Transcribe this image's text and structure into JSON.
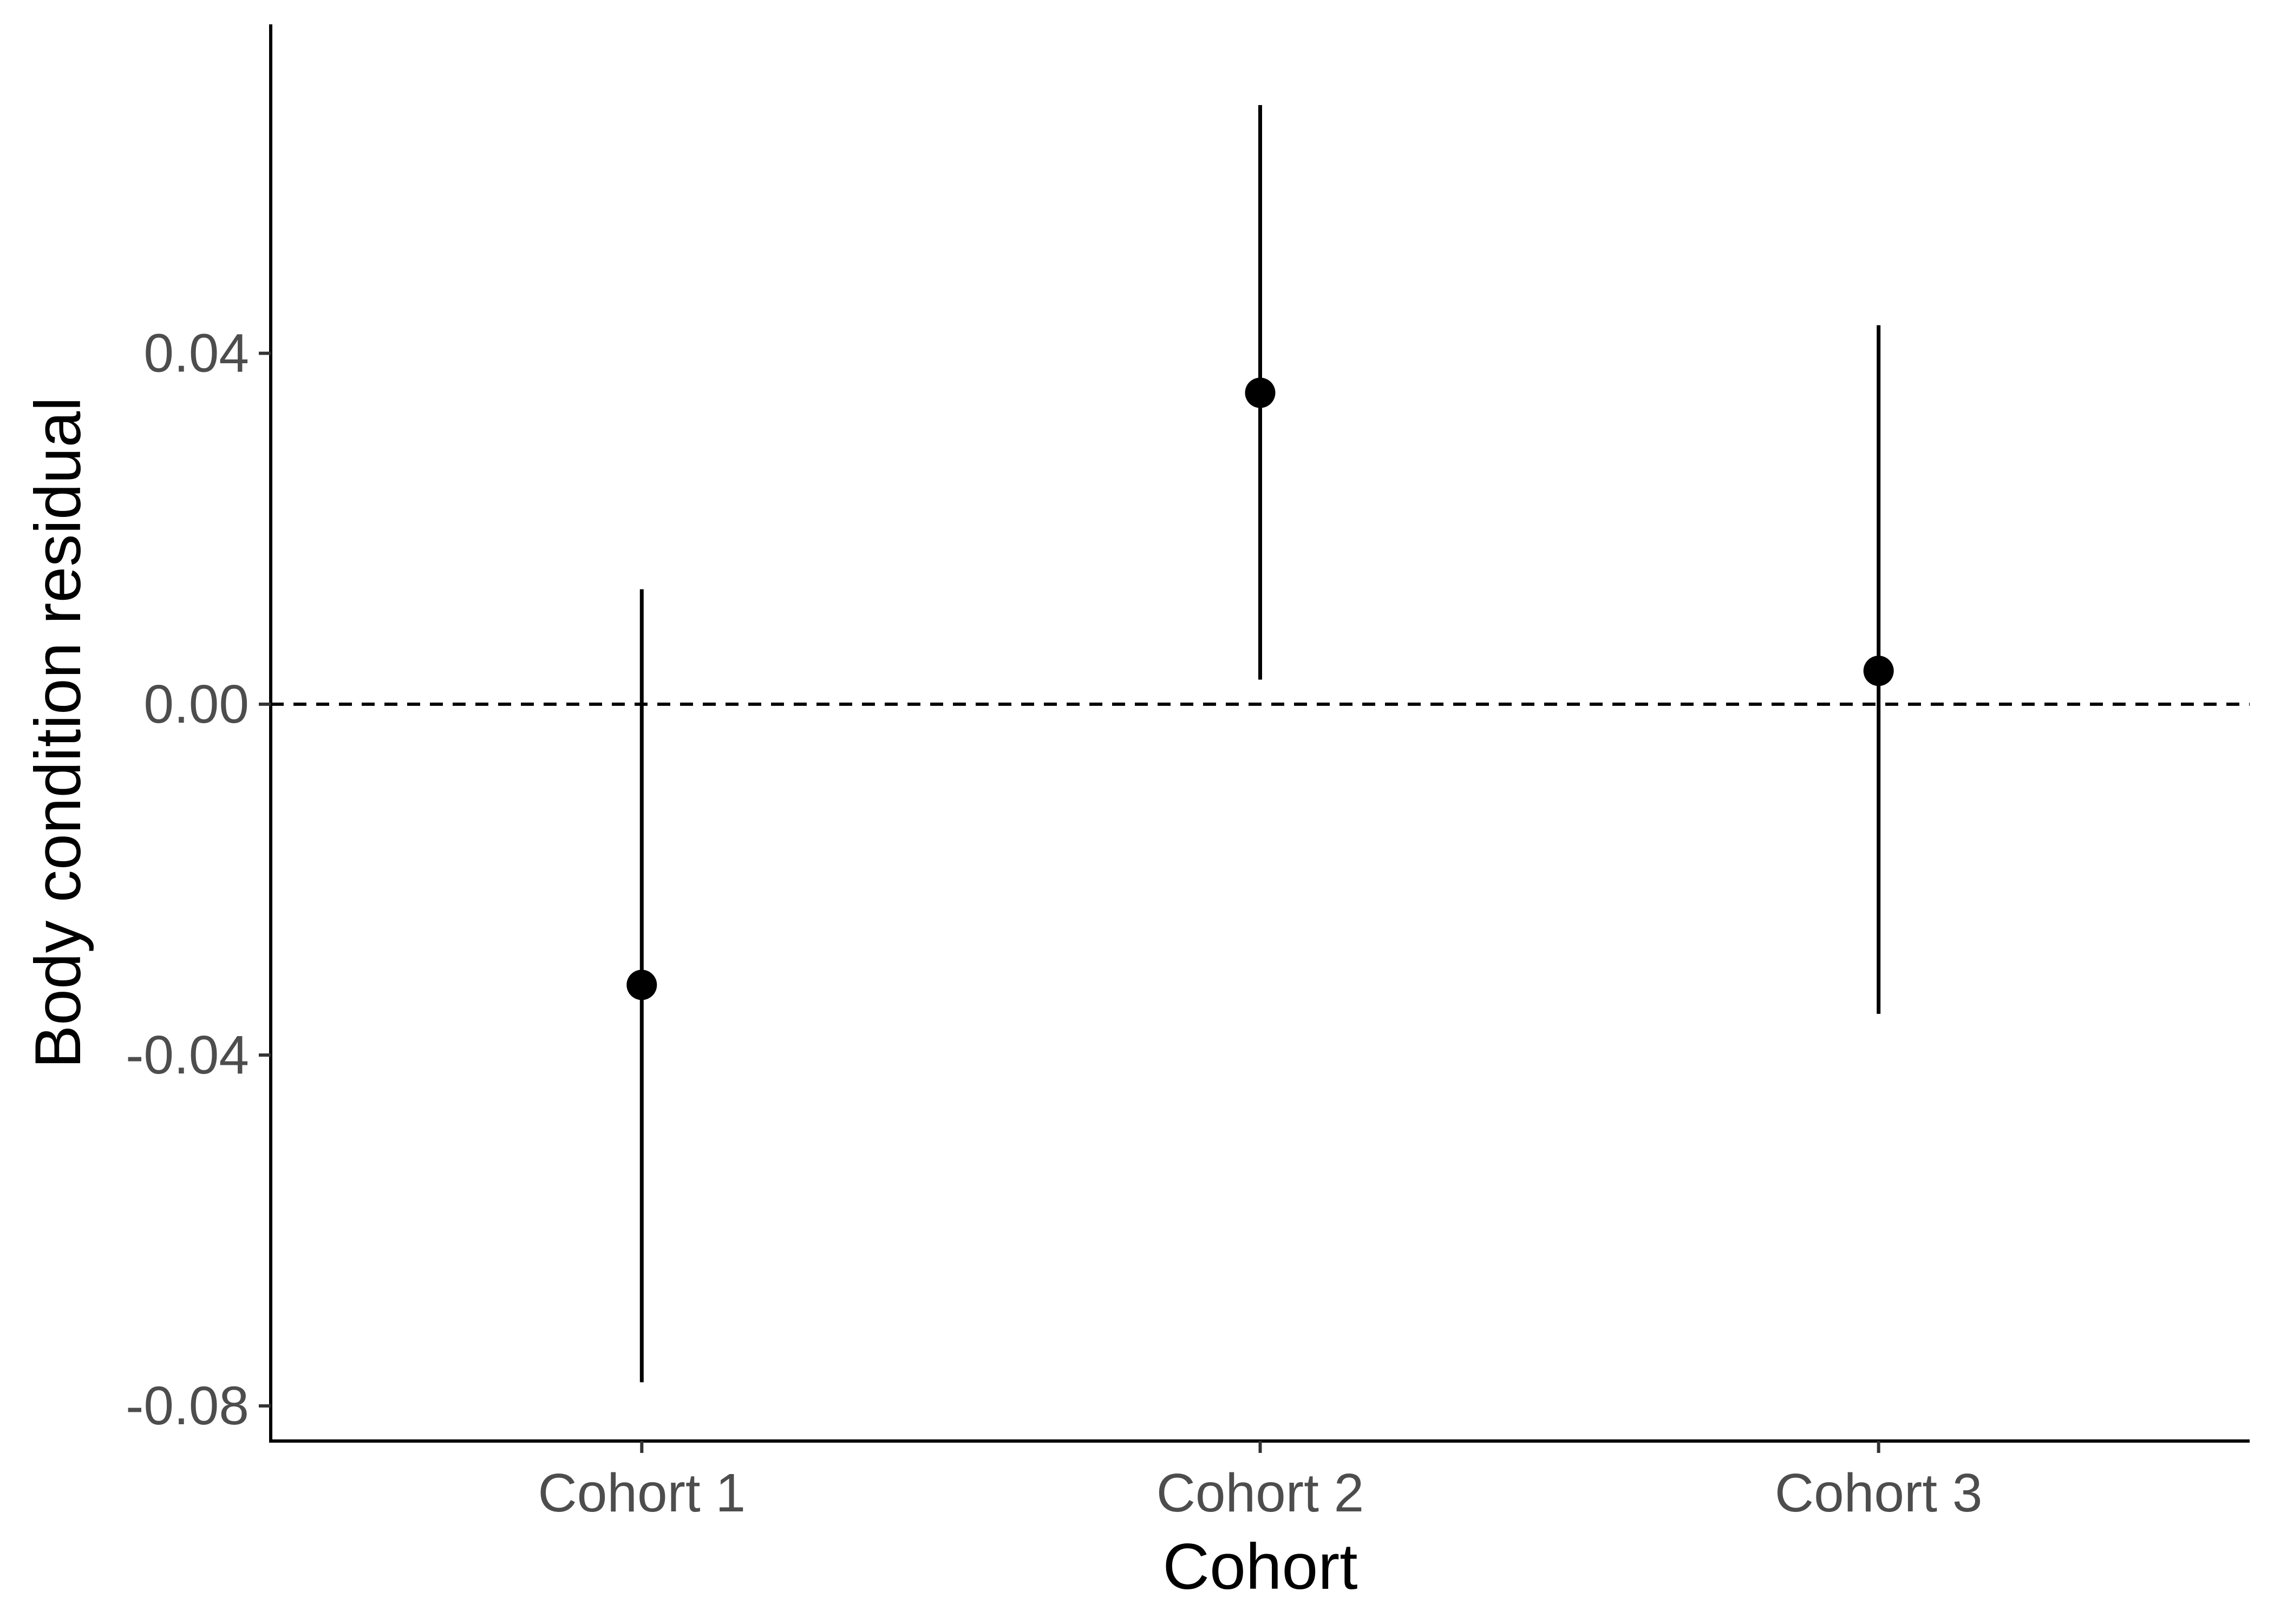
{
  "chart_data": {
    "type": "scatter",
    "subtype": "point-range",
    "title": "",
    "xlabel": "Cohort",
    "ylabel": "Body condition residual",
    "categories": [
      "Cohort 1",
      "Cohort 2",
      "Cohort 3"
    ],
    "series": [
      {
        "values": [
          -0.032,
          0.0355,
          0.0038
        ],
        "lower": [
          -0.0773,
          0.0028,
          -0.0353
        ],
        "upper": [
          0.0131,
          0.0683,
          0.0432
        ]
      }
    ],
    "ylim": [
      -0.084,
      0.0775
    ],
    "yticks": [
      -0.08,
      -0.04,
      0.0,
      0.04
    ],
    "ytick_labels": [
      "-0.08",
      "-0.04",
      "0.00",
      "0.04"
    ],
    "reference_line": {
      "y": 0,
      "style": "dashed"
    },
    "grid": false,
    "legend": "none",
    "colors": {
      "points": "#000000",
      "axis": "#000000",
      "tick_labels": "#4d4d4d",
      "background": "#ffffff"
    }
  }
}
